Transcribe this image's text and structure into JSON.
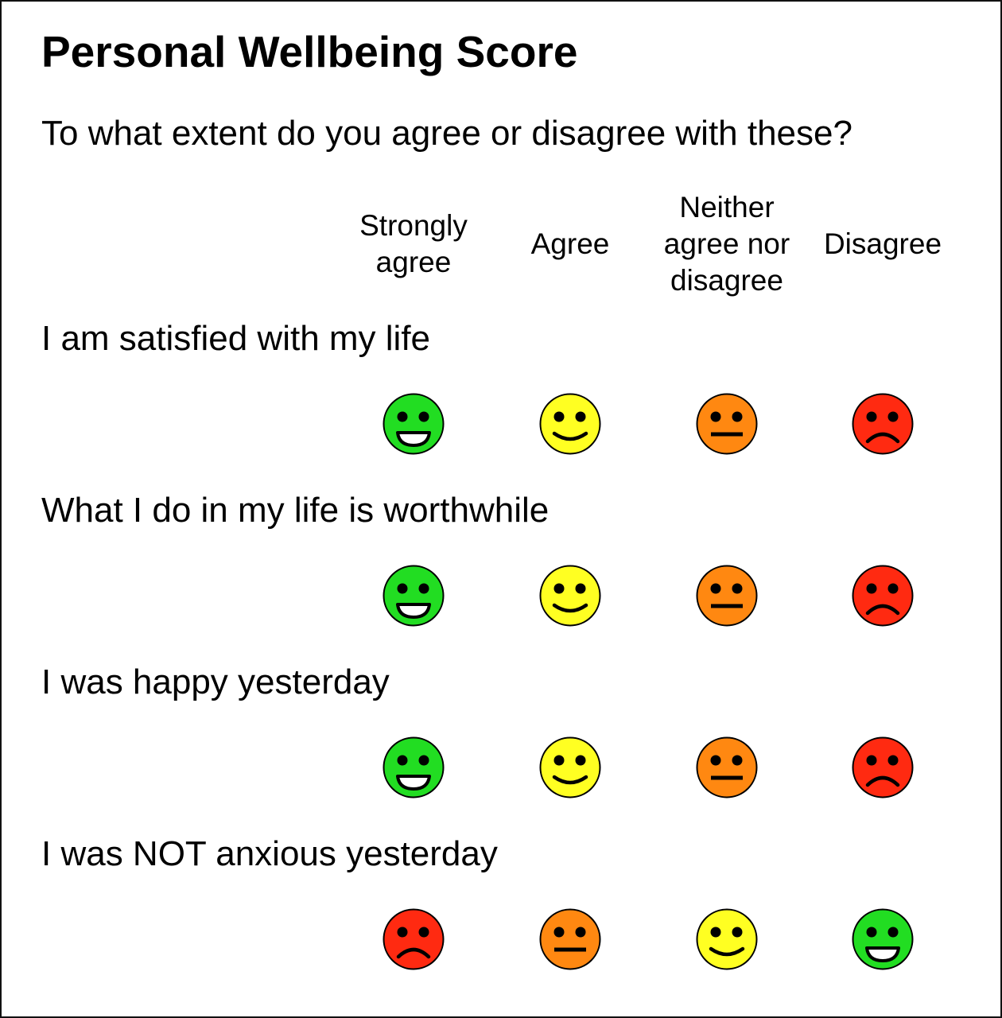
{
  "title": "Personal Wellbeing Score",
  "subtitle": "To what extent do you agree or disagree with these?",
  "columns": [
    {
      "label_lines": [
        "Strongly",
        "agree"
      ]
    },
    {
      "label_lines": [
        "Agree"
      ]
    },
    {
      "label_lines": [
        "Neither",
        "agree nor",
        "disagree"
      ]
    },
    {
      "label_lines": [
        "Disagree"
      ]
    }
  ],
  "face_types": {
    "big-smile": {
      "color": "#22dd22"
    },
    "smile": {
      "color": "#ffff22"
    },
    "neutral": {
      "color": "#ff8811"
    },
    "frown": {
      "color": "#ff2a11"
    }
  },
  "rows": [
    {
      "statement": "I am satisfied with my life",
      "faces": [
        "big-smile",
        "smile",
        "neutral",
        "frown"
      ]
    },
    {
      "statement": "What I do in my life is worthwhile",
      "faces": [
        "big-smile",
        "smile",
        "neutral",
        "frown"
      ]
    },
    {
      "statement": "I was happy yesterday",
      "faces": [
        "big-smile",
        "smile",
        "neutral",
        "frown"
      ]
    },
    {
      "statement": "I was NOT anxious yesterday",
      "faces": [
        "frown",
        "neutral",
        "smile",
        "big-smile"
      ]
    }
  ]
}
